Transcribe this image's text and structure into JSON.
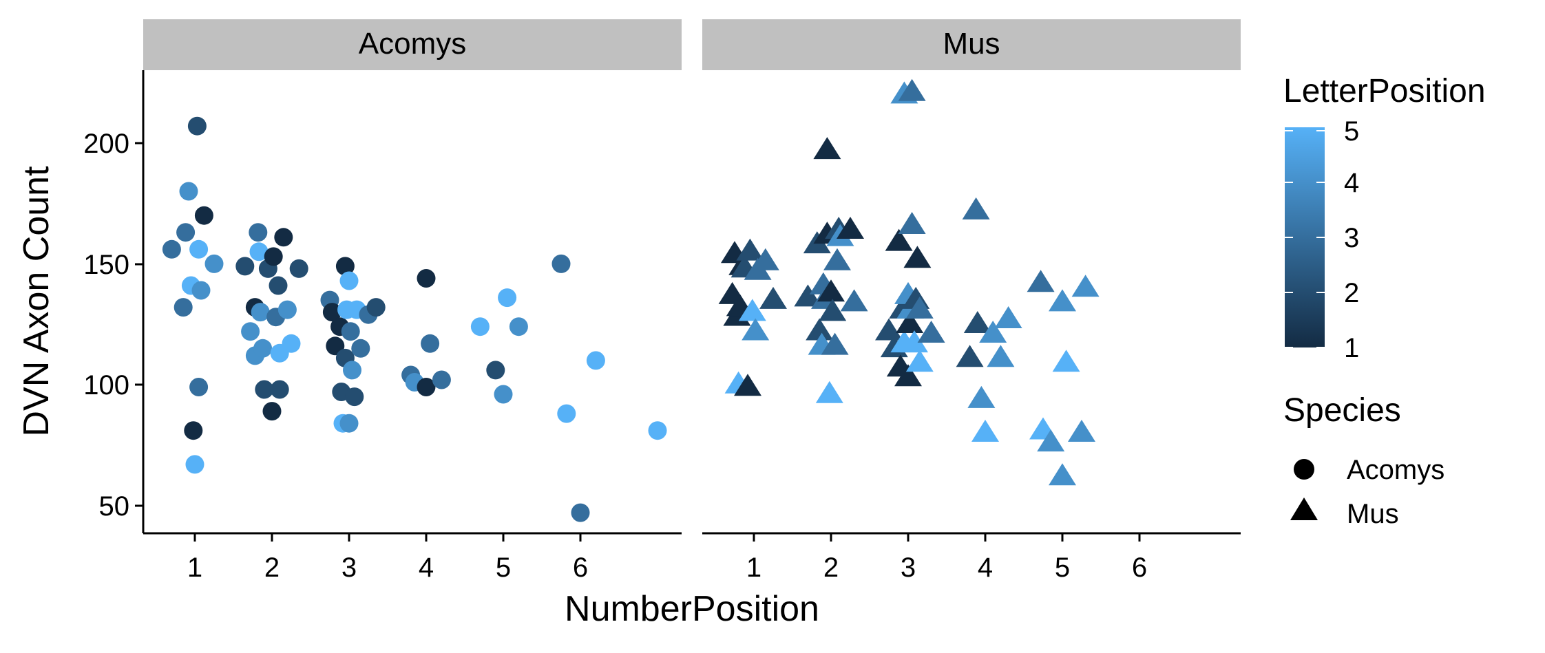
{
  "chart_data": {
    "type": "scatter",
    "title": "",
    "xlabel": "NumberPosition",
    "ylabel": "DVN Axon Count",
    "xlim": [
      0.4,
      7.1
    ],
    "ylim": [
      40,
      230
    ],
    "x_ticks": [
      "1",
      "2",
      "3",
      "4",
      "5",
      "6"
    ],
    "y_ticks": [
      "50",
      "100",
      "150",
      "200"
    ],
    "grid": false,
    "facets": [
      "Acomys",
      "Mus"
    ],
    "color_legend": {
      "title": "LetterPosition",
      "min": 1,
      "max": 5,
      "ticks": [
        "1",
        "2",
        "3",
        "4",
        "5"
      ],
      "low_color": "#132B43",
      "high_color": "#56B1F7"
    },
    "shape_legend": {
      "title": "Species",
      "entries": [
        {
          "label": "Acomys",
          "shape": "circle"
        },
        {
          "label": "Mus",
          "shape": "triangle"
        }
      ]
    },
    "series": [
      {
        "name": "Acomys",
        "shape": "circle",
        "points": [
          [
            0.7,
            156,
            3
          ],
          [
            0.85,
            132,
            3
          ],
          [
            0.88,
            163,
            3
          ],
          [
            0.92,
            180,
            4
          ],
          [
            0.95,
            141,
            5
          ],
          [
            0.98,
            81,
            1
          ],
          [
            1.0,
            67,
            5
          ],
          [
            1.03,
            207,
            2
          ],
          [
            1.05,
            99,
            3
          ],
          [
            1.05,
            156,
            5
          ],
          [
            1.08,
            139,
            4
          ],
          [
            1.12,
            170,
            1
          ],
          [
            1.25,
            150,
            4
          ],
          [
            1.65,
            149,
            2
          ],
          [
            1.72,
            122,
            4
          ],
          [
            1.78,
            132,
            1
          ],
          [
            1.78,
            112,
            4
          ],
          [
            1.82,
            163,
            3
          ],
          [
            1.83,
            155,
            5
          ],
          [
            1.85,
            130,
            4
          ],
          [
            1.88,
            115,
            4
          ],
          [
            1.9,
            98,
            2
          ],
          [
            1.95,
            148,
            2
          ],
          [
            2.0,
            89,
            1
          ],
          [
            2.02,
            153,
            1
          ],
          [
            2.05,
            128,
            3
          ],
          [
            2.08,
            141,
            2
          ],
          [
            2.1,
            98,
            2
          ],
          [
            2.1,
            113,
            5
          ],
          [
            2.15,
            161,
            1
          ],
          [
            2.2,
            131,
            4
          ],
          [
            2.25,
            117,
            5
          ],
          [
            2.35,
            148,
            2
          ],
          [
            2.75,
            135,
            3
          ],
          [
            2.78,
            130,
            1
          ],
          [
            2.82,
            116,
            1
          ],
          [
            2.88,
            124,
            1
          ],
          [
            2.9,
            97,
            2
          ],
          [
            2.92,
            84,
            5
          ],
          [
            2.95,
            149,
            1
          ],
          [
            2.95,
            111,
            2
          ],
          [
            2.97,
            131,
            5
          ],
          [
            3.0,
            143,
            5
          ],
          [
            3.0,
            84,
            4
          ],
          [
            3.02,
            122,
            3
          ],
          [
            3.04,
            106,
            4
          ],
          [
            3.07,
            95,
            2
          ],
          [
            3.1,
            131,
            5
          ],
          [
            3.15,
            115,
            3
          ],
          [
            3.25,
            129,
            3
          ],
          [
            3.35,
            132,
            2
          ],
          [
            3.8,
            104,
            3
          ],
          [
            3.85,
            101,
            4
          ],
          [
            4.0,
            144,
            1
          ],
          [
            4.0,
            99,
            1
          ],
          [
            4.05,
            117,
            3
          ],
          [
            4.2,
            102,
            3
          ],
          [
            4.7,
            124,
            5
          ],
          [
            4.9,
            106,
            2
          ],
          [
            5.0,
            96,
            4
          ],
          [
            5.05,
            136,
            5
          ],
          [
            5.2,
            124,
            4
          ],
          [
            5.75,
            150,
            3
          ],
          [
            5.82,
            88,
            5
          ],
          [
            6.0,
            47,
            3
          ],
          [
            6.2,
            110,
            5
          ],
          [
            7.0,
            81,
            5
          ]
        ]
      },
      {
        "name": "Mus",
        "shape": "triangle",
        "points": [
          [
            0.72,
            137,
            1
          ],
          [
            0.75,
            154,
            1
          ],
          [
            0.78,
            128,
            1
          ],
          [
            0.8,
            100,
            5
          ],
          [
            0.82,
            132,
            1
          ],
          [
            0.85,
            149,
            1
          ],
          [
            0.88,
            148,
            2
          ],
          [
            0.92,
            99,
            1
          ],
          [
            0.95,
            155,
            2
          ],
          [
            0.98,
            130,
            5
          ],
          [
            1.02,
            122,
            4
          ],
          [
            1.05,
            147,
            3
          ],
          [
            1.15,
            151,
            3
          ],
          [
            1.25,
            135,
            2
          ],
          [
            1.7,
            136,
            2
          ],
          [
            1.82,
            158,
            2
          ],
          [
            1.85,
            122,
            2
          ],
          [
            1.88,
            116,
            4
          ],
          [
            1.9,
            141,
            3
          ],
          [
            1.92,
            135,
            3
          ],
          [
            1.95,
            162,
            1
          ],
          [
            1.95,
            197,
            1
          ],
          [
            1.98,
            96,
            5
          ],
          [
            2.0,
            138,
            1
          ],
          [
            2.02,
            130,
            2
          ],
          [
            2.05,
            116,
            3
          ],
          [
            2.08,
            151,
            3
          ],
          [
            2.1,
            164,
            2
          ],
          [
            2.12,
            161,
            4
          ],
          [
            2.25,
            164,
            1
          ],
          [
            2.3,
            134,
            3
          ],
          [
            2.75,
            122,
            2
          ],
          [
            2.82,
            115,
            2
          ],
          [
            2.88,
            159,
            1
          ],
          [
            2.9,
            107,
            1
          ],
          [
            2.93,
            131,
            2
          ],
          [
            2.95,
            117,
            5
          ],
          [
            2.95,
            220,
            4
          ],
          [
            3.0,
            103,
            1
          ],
          [
            3.0,
            137,
            4
          ],
          [
            3.02,
            125,
            1
          ],
          [
            3.03,
            131,
            4
          ],
          [
            3.05,
            166,
            3
          ],
          [
            3.05,
            221,
            3
          ],
          [
            3.08,
            117,
            5
          ],
          [
            3.1,
            135,
            2
          ],
          [
            3.12,
            152,
            1
          ],
          [
            3.15,
            109,
            5
          ],
          [
            3.15,
            131,
            3
          ],
          [
            3.3,
            121,
            3
          ],
          [
            3.8,
            111,
            2
          ],
          [
            3.88,
            172,
            3
          ],
          [
            3.9,
            125,
            2
          ],
          [
            3.95,
            94,
            4
          ],
          [
            4.0,
            80,
            5
          ],
          [
            4.1,
            121,
            4
          ],
          [
            4.2,
            111,
            4
          ],
          [
            4.3,
            127,
            4
          ],
          [
            4.72,
            142,
            3
          ],
          [
            4.75,
            81,
            5
          ],
          [
            4.85,
            76,
            4
          ],
          [
            5.0,
            134,
            4
          ],
          [
            5.0,
            62,
            4
          ],
          [
            5.05,
            109,
            5
          ],
          [
            5.25,
            80,
            4
          ],
          [
            5.3,
            140,
            4
          ]
        ]
      }
    ]
  }
}
